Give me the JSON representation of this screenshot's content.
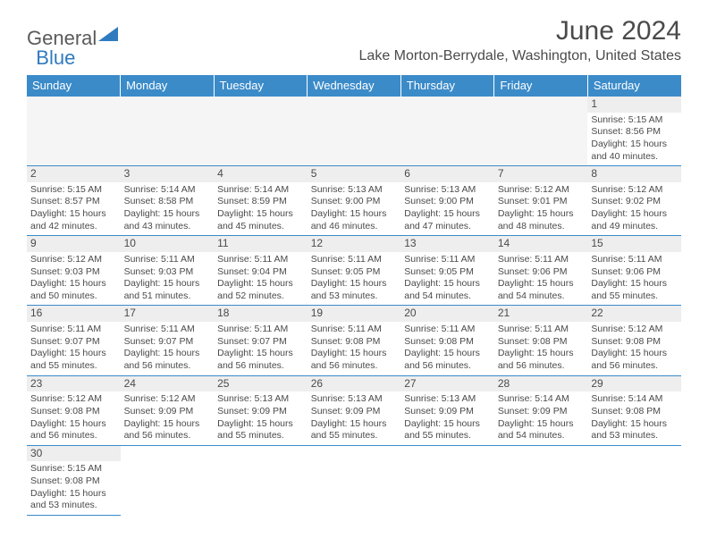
{
  "logo": {
    "general": "General",
    "blue": "Blue"
  },
  "title": "June 2024",
  "location": "Lake Morton-Berrydale, Washington, United States",
  "header_bg": "#3b8bc9",
  "days_of_week": [
    "Sunday",
    "Monday",
    "Tuesday",
    "Wednesday",
    "Thursday",
    "Friday",
    "Saturday"
  ],
  "weeks": [
    [
      null,
      null,
      null,
      null,
      null,
      null,
      {
        "n": "1",
        "sunrise": "5:15 AM",
        "sunset": "8:56 PM",
        "daylight": "15 hours and 40 minutes."
      }
    ],
    [
      {
        "n": "2",
        "sunrise": "5:15 AM",
        "sunset": "8:57 PM",
        "daylight": "15 hours and 42 minutes."
      },
      {
        "n": "3",
        "sunrise": "5:14 AM",
        "sunset": "8:58 PM",
        "daylight": "15 hours and 43 minutes."
      },
      {
        "n": "4",
        "sunrise": "5:14 AM",
        "sunset": "8:59 PM",
        "daylight": "15 hours and 45 minutes."
      },
      {
        "n": "5",
        "sunrise": "5:13 AM",
        "sunset": "9:00 PM",
        "daylight": "15 hours and 46 minutes."
      },
      {
        "n": "6",
        "sunrise": "5:13 AM",
        "sunset": "9:00 PM",
        "daylight": "15 hours and 47 minutes."
      },
      {
        "n": "7",
        "sunrise": "5:12 AM",
        "sunset": "9:01 PM",
        "daylight": "15 hours and 48 minutes."
      },
      {
        "n": "8",
        "sunrise": "5:12 AM",
        "sunset": "9:02 PM",
        "daylight": "15 hours and 49 minutes."
      }
    ],
    [
      {
        "n": "9",
        "sunrise": "5:12 AM",
        "sunset": "9:03 PM",
        "daylight": "15 hours and 50 minutes."
      },
      {
        "n": "10",
        "sunrise": "5:11 AM",
        "sunset": "9:03 PM",
        "daylight": "15 hours and 51 minutes."
      },
      {
        "n": "11",
        "sunrise": "5:11 AM",
        "sunset": "9:04 PM",
        "daylight": "15 hours and 52 minutes."
      },
      {
        "n": "12",
        "sunrise": "5:11 AM",
        "sunset": "9:05 PM",
        "daylight": "15 hours and 53 minutes."
      },
      {
        "n": "13",
        "sunrise": "5:11 AM",
        "sunset": "9:05 PM",
        "daylight": "15 hours and 54 minutes."
      },
      {
        "n": "14",
        "sunrise": "5:11 AM",
        "sunset": "9:06 PM",
        "daylight": "15 hours and 54 minutes."
      },
      {
        "n": "15",
        "sunrise": "5:11 AM",
        "sunset": "9:06 PM",
        "daylight": "15 hours and 55 minutes."
      }
    ],
    [
      {
        "n": "16",
        "sunrise": "5:11 AM",
        "sunset": "9:07 PM",
        "daylight": "15 hours and 55 minutes."
      },
      {
        "n": "17",
        "sunrise": "5:11 AM",
        "sunset": "9:07 PM",
        "daylight": "15 hours and 56 minutes."
      },
      {
        "n": "18",
        "sunrise": "5:11 AM",
        "sunset": "9:07 PM",
        "daylight": "15 hours and 56 minutes."
      },
      {
        "n": "19",
        "sunrise": "5:11 AM",
        "sunset": "9:08 PM",
        "daylight": "15 hours and 56 minutes."
      },
      {
        "n": "20",
        "sunrise": "5:11 AM",
        "sunset": "9:08 PM",
        "daylight": "15 hours and 56 minutes."
      },
      {
        "n": "21",
        "sunrise": "5:11 AM",
        "sunset": "9:08 PM",
        "daylight": "15 hours and 56 minutes."
      },
      {
        "n": "22",
        "sunrise": "5:12 AM",
        "sunset": "9:08 PM",
        "daylight": "15 hours and 56 minutes."
      }
    ],
    [
      {
        "n": "23",
        "sunrise": "5:12 AM",
        "sunset": "9:08 PM",
        "daylight": "15 hours and 56 minutes."
      },
      {
        "n": "24",
        "sunrise": "5:12 AM",
        "sunset": "9:09 PM",
        "daylight": "15 hours and 56 minutes."
      },
      {
        "n": "25",
        "sunrise": "5:13 AM",
        "sunset": "9:09 PM",
        "daylight": "15 hours and 55 minutes."
      },
      {
        "n": "26",
        "sunrise": "5:13 AM",
        "sunset": "9:09 PM",
        "daylight": "15 hours and 55 minutes."
      },
      {
        "n": "27",
        "sunrise": "5:13 AM",
        "sunset": "9:09 PM",
        "daylight": "15 hours and 55 minutes."
      },
      {
        "n": "28",
        "sunrise": "5:14 AM",
        "sunset": "9:09 PM",
        "daylight": "15 hours and 54 minutes."
      },
      {
        "n": "29",
        "sunrise": "5:14 AM",
        "sunset": "9:08 PM",
        "daylight": "15 hours and 53 minutes."
      }
    ],
    [
      {
        "n": "30",
        "sunrise": "5:15 AM",
        "sunset": "9:08 PM",
        "daylight": "15 hours and 53 minutes."
      },
      null,
      null,
      null,
      null,
      null,
      null
    ]
  ],
  "labels": {
    "sunrise": "Sunrise:",
    "sunset": "Sunset:",
    "daylight": "Daylight:"
  }
}
